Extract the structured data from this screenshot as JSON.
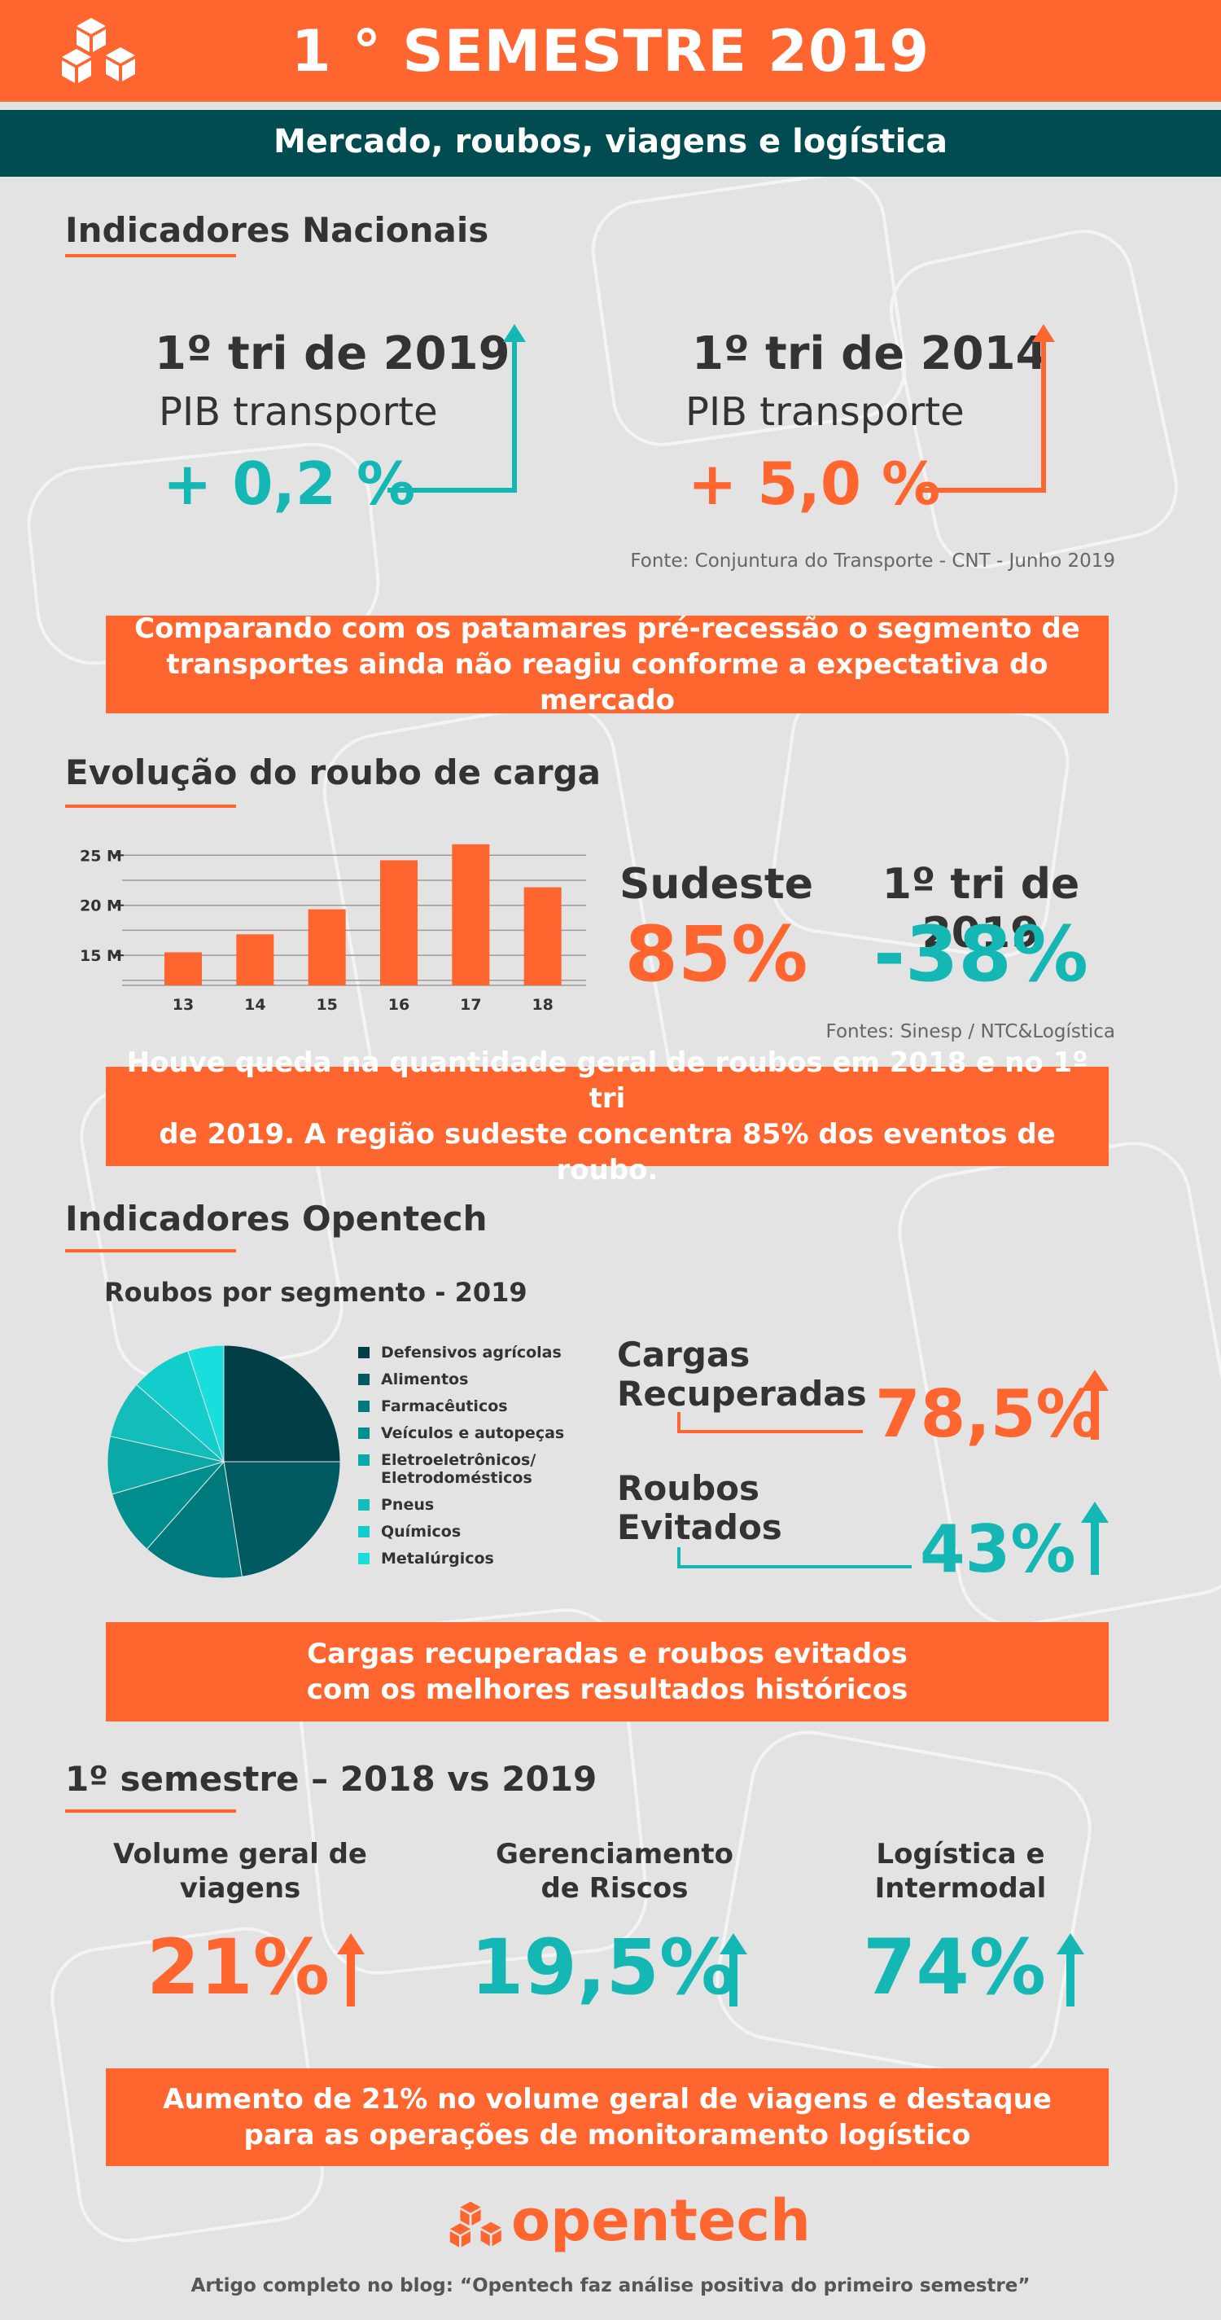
{
  "header": {
    "title": "1 ° SEMESTRE 2019",
    "subtitle": "Mercado, roubos, viagens e logística"
  },
  "section1": {
    "heading": "Indicadores Nacionais",
    "left": {
      "title": "1º tri de 2019",
      "subtitle": "PIB transporte",
      "value": "+ 0,2 %"
    },
    "right": {
      "title": "1º tri de 2014",
      "subtitle": "PIB transporte",
      "value": "+ 5,0 %"
    },
    "source": "Fonte: Conjuntura do Transporte - CNT - Junho 2019",
    "banner": [
      "Comparando com os patamares pré-recessão o segmento de",
      "transportes ainda não reagiu conforme a expectativa do mercado"
    ]
  },
  "section2": {
    "heading": "Evolução do roubo de carga",
    "stat1": {
      "label": "Sudeste",
      "value": "85%"
    },
    "stat2": {
      "label": "1º tri de 2019",
      "value": "-38%"
    },
    "source": "Fontes: Sinesp / NTC&Logística",
    "banner": [
      "Houve queda na quantidade geral de roubos em 2018 e no 1º tri",
      "de 2019. A região sudeste concentra 85% dos eventos de roubo."
    ]
  },
  "chart_data": [
    {
      "type": "bar",
      "categories": [
        "13",
        "14",
        "15",
        "16",
        "17",
        "18"
      ],
      "values": [
        15.3,
        17.1,
        19.6,
        24.5,
        26.1,
        21.8
      ],
      "yticks": [
        "15 M",
        "20 M",
        "25 M"
      ],
      "ylim": [
        12,
        26
      ],
      "grid": true,
      "colors": {
        "bar": "#ff652f",
        "grid": "#9a9a9a"
      }
    },
    {
      "type": "pie",
      "title": "Roubos por segmento - 2019",
      "labels": [
        "Defensivos agrícolas",
        "Alimentos",
        "Farmacêuticos",
        "Veículos e autopeças",
        "Eletroeletrônicos/ Eletrodomésticos",
        "Pneus",
        "Químicos",
        "Metalúrgicos"
      ],
      "values": [
        25,
        22.5,
        14,
        9,
        8,
        8,
        8.5,
        5
      ],
      "colors": [
        "#003f45",
        "#005a61",
        "#00797d",
        "#008e8e",
        "#0aa9a8",
        "#12bdbb",
        "#13cdcc",
        "#18dede"
      ],
      "legend": "right"
    }
  ],
  "section3": {
    "heading": "Indicadores Opentech",
    "kpi1": {
      "label_line1": "Cargas",
      "label_line2": "Recuperadas",
      "value": "78,5%"
    },
    "kpi2": {
      "label_line1": "Roubos",
      "label_line2": "Evitados",
      "value": "43%"
    },
    "banner": [
      "Cargas recuperadas e roubos evitados",
      "com os melhores resultados históricos"
    ]
  },
  "section4": {
    "heading": "1º semestre – 2018 vs 2019",
    "items": [
      {
        "line1": "Volume geral de",
        "line2": "viagens",
        "value": "21%"
      },
      {
        "line1": "Gerenciamento",
        "line2": "de Riscos",
        "value": "19,5%"
      },
      {
        "line1": "Logística e",
        "line2": "Intermodal",
        "value": "74%"
      }
    ],
    "banner": [
      "Aumento de 21% no volume geral de viagens e destaque",
      "para as operações de monitoramento logístico"
    ]
  },
  "footer": {
    "brand": "opentech",
    "note": "Artigo completo no blog: “Opentech faz análise positiva do primeiro semestre”"
  },
  "colors": {
    "orange": "#ff652f",
    "teal": "#14b7b3",
    "dark_teal": "#004c50",
    "background": "#e3e3e3"
  },
  "icons": [
    "opentech-cube-logo",
    "arrow-up-icon"
  ]
}
